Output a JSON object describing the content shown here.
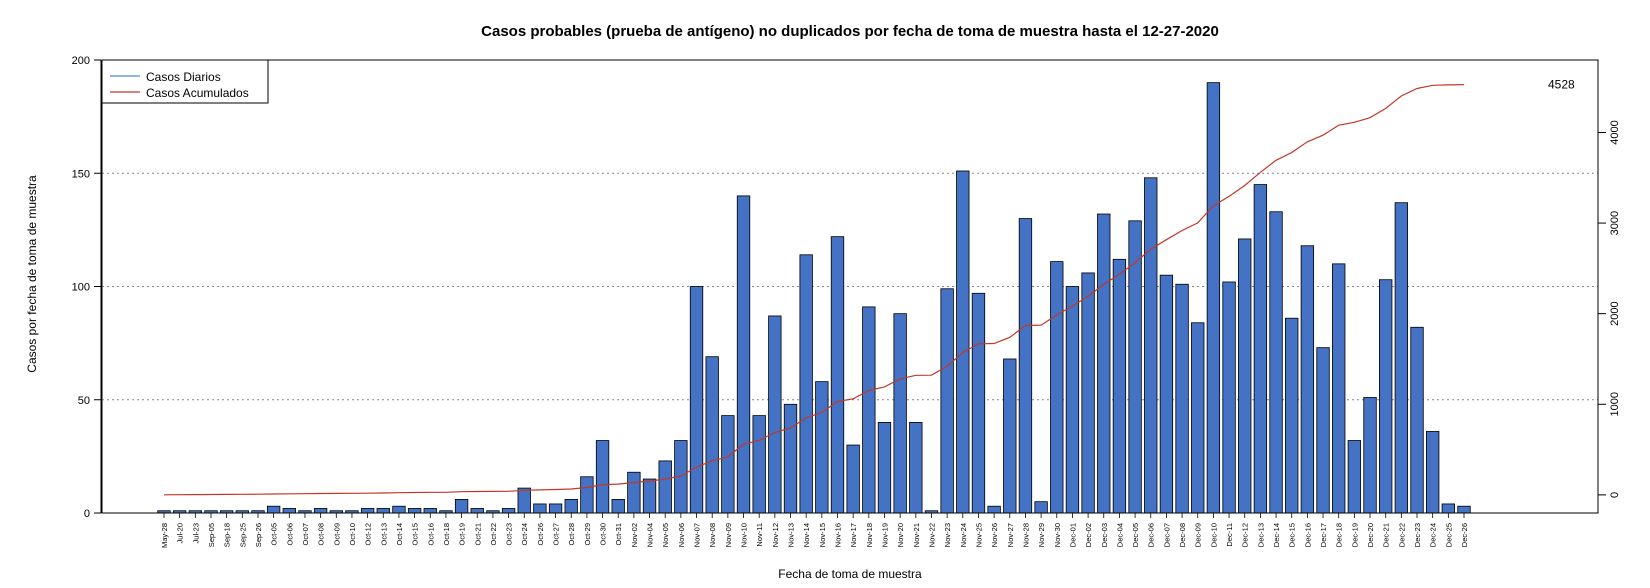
{
  "chart_data": {
    "type": "bar",
    "title": "Casos probables (prueba de antígeno) no duplicados por fecha de toma de muestra hasta el 12-27-2020",
    "xlabel": "Fecha de toma de muestra",
    "ylabel": "Casos por fecha de toma de muestra",
    "ylim": [
      0,
      200
    ],
    "y2lim": [
      -200,
      4800
    ],
    "yticks": [
      0,
      50,
      100,
      150,
      200
    ],
    "y2ticks": [
      0,
      1000,
      2000,
      3000,
      4000
    ],
    "grid": "horizontal-dotted",
    "legend_position": "top-left",
    "colors": {
      "bars": "#4472C4",
      "cumulative": "#C0392B",
      "daily_legend": "#4A86E8"
    },
    "categories": [
      "May-28",
      "Jul-20",
      "Jul-23",
      "Sep-05",
      "Sep-18",
      "Sep-25",
      "Sep-26",
      "Oct-05",
      "Oct-06",
      "Oct-07",
      "Oct-08",
      "Oct-09",
      "Oct-10",
      "Oct-12",
      "Oct-13",
      "Oct-14",
      "Oct-15",
      "Oct-16",
      "Oct-18",
      "Oct-19",
      "Oct-21",
      "Oct-22",
      "Oct-23",
      "Oct-24",
      "Oct-26",
      "Oct-27",
      "Oct-28",
      "Oct-29",
      "Oct-30",
      "Oct-31",
      "Nov-02",
      "Nov-04",
      "Nov-05",
      "Nov-06",
      "Nov-07",
      "Nov-08",
      "Nov-09",
      "Nov-10",
      "Nov-11",
      "Nov-12",
      "Nov-13",
      "Nov-14",
      "Nov-15",
      "Nov-16",
      "Nov-17",
      "Nov-18",
      "Nov-19",
      "Nov-20",
      "Nov-21",
      "Nov-22",
      "Nov-23",
      "Nov-24",
      "Nov-25",
      "Nov-26",
      "Nov-27",
      "Nov-28",
      "Nov-29",
      "Nov-30",
      "Dec-01",
      "Dec-02",
      "Dec-03",
      "Dec-04",
      "Dec-05",
      "Dec-06",
      "Dec-07",
      "Dec-08",
      "Dec-09",
      "Dec-10",
      "Dec-11",
      "Dec-12",
      "Dec-13",
      "Dec-14",
      "Dec-15",
      "Dec-16",
      "Dec-17",
      "Dec-18",
      "Dec-19",
      "Dec-20",
      "Dec-21",
      "Dec-22",
      "Dec-23",
      "Dec-24",
      "Dec-25",
      "Dec-26"
    ],
    "series": [
      {
        "name": "Casos Diarios",
        "axis": "left",
        "values": [
          1,
          1,
          1,
          1,
          1,
          1,
          1,
          3,
          2,
          1,
          2,
          1,
          1,
          2,
          2,
          3,
          2,
          2,
          1,
          6,
          2,
          1,
          2,
          11,
          4,
          4,
          6,
          16,
          32,
          6,
          18,
          15,
          23,
          32,
          100,
          69,
          43,
          140,
          43,
          87,
          48,
          114,
          58,
          122,
          30,
          91,
          40,
          88,
          40,
          1,
          99,
          151,
          97,
          3,
          68,
          130,
          5,
          111,
          100,
          106,
          132,
          112,
          129,
          148,
          105,
          101,
          84,
          190,
          102,
          121,
          145,
          133,
          86,
          118,
          73,
          110,
          32,
          51,
          103,
          137,
          82,
          36,
          4,
          3
        ]
      },
      {
        "name": "Casos Acumulados",
        "axis": "right",
        "end_label": "4528"
      }
    ]
  }
}
